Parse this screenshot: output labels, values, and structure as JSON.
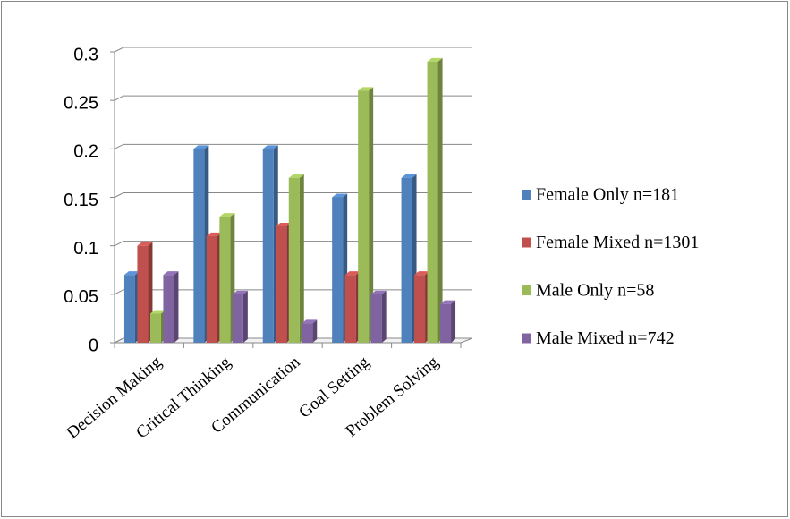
{
  "chart_data": {
    "type": "bar",
    "categories": [
      "Decision Making",
      "Critical Thinking",
      "Communication",
      "Goal Setting",
      "Problem Solving"
    ],
    "series": [
      {
        "name": "Female Only n=181",
        "color": "#4f81bd",
        "values": [
          0.07,
          0.2,
          0.2,
          0.15,
          0.17
        ]
      },
      {
        "name": "Female Mixed n=1301",
        "color": "#c0504d",
        "values": [
          0.1,
          0.11,
          0.12,
          0.07,
          0.07
        ]
      },
      {
        "name": "Male Only n=58",
        "color": "#9bbb59",
        "values": [
          0.03,
          0.13,
          0.17,
          0.26,
          0.29
        ]
      },
      {
        "name": "Male Mixed n=742",
        "color": "#8064a2",
        "values": [
          0.07,
          0.05,
          0.02,
          0.05,
          0.04
        ]
      }
    ],
    "ylim": [
      0,
      0.3
    ],
    "yticks": [
      0,
      0.05,
      0.1,
      0.15,
      0.2,
      0.25,
      0.3
    ],
    "grid": true,
    "legend": "right"
  }
}
